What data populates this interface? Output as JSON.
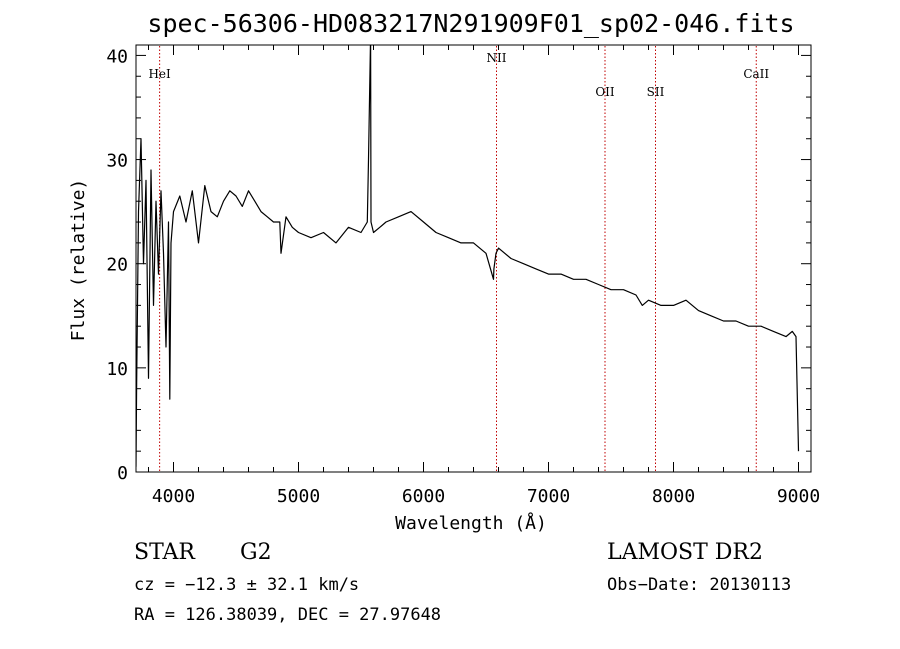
{
  "chart_data": {
    "type": "line",
    "title": "spec-56306-HD083217N291909F01_sp02-046.fits",
    "xlabel": "Wavelength (Å)",
    "ylabel": "Flux (relative)",
    "xlim": [
      3700,
      9100
    ],
    "ylim": [
      0,
      41
    ],
    "xticks": [
      4000,
      5000,
      6000,
      7000,
      8000,
      9000
    ],
    "yticks": [
      0,
      10,
      20,
      30,
      40
    ],
    "grid": false,
    "series": [
      {
        "x": [
          3700,
          3705,
          3720,
          3740,
          3760,
          3780,
          3800,
          3820,
          3840,
          3860,
          3880,
          3900,
          3920,
          3940,
          3960,
          3970,
          3980,
          4000,
          4050,
          4100,
          4150,
          4200,
          4250,
          4300,
          4350,
          4400,
          4450,
          4500,
          4550,
          4600,
          4650,
          4700,
          4750,
          4800,
          4850,
          4860,
          4900,
          4950,
          5000,
          5100,
          5200,
          5300,
          5400,
          5500,
          5550,
          5560,
          5577,
          5580,
          5600,
          5650,
          5700,
          5800,
          5900,
          6000,
          6100,
          6200,
          6300,
          6400,
          6500,
          6560,
          6563,
          6580,
          6600,
          6700,
          6800,
          6900,
          7000,
          7100,
          7200,
          7300,
          7400,
          7500,
          7600,
          7700,
          7750,
          7800,
          7900,
          8000,
          8100,
          8200,
          8300,
          8400,
          8500,
          8600,
          8700,
          8800,
          8900,
          8950,
          8980,
          9000
        ],
        "y": [
          0.5,
          8.0,
          25.0,
          32.0,
          20.0,
          28.0,
          9.0,
          29.0,
          16.0,
          26.0,
          19.0,
          27.0,
          21.0,
          12.0,
          24.0,
          7.0,
          22.0,
          25.0,
          26.5,
          24.0,
          27.0,
          22.0,
          27.5,
          25.0,
          24.5,
          26.0,
          27.0,
          26.5,
          25.5,
          27.0,
          26.0,
          25.0,
          24.5,
          24.0,
          24.0,
          21.0,
          24.5,
          23.5,
          23.0,
          22.5,
          23.0,
          22.0,
          23.5,
          23.0,
          24.0,
          30.0,
          42.0,
          24.0,
          23.0,
          23.5,
          24.0,
          24.5,
          25.0,
          24.0,
          23.0,
          22.5,
          22.0,
          22.0,
          21.0,
          18.5,
          19.5,
          21.0,
          21.5,
          20.5,
          20.0,
          19.5,
          19.0,
          19.0,
          18.5,
          18.5,
          18.0,
          17.5,
          17.5,
          17.0,
          16.0,
          16.5,
          16.0,
          16.0,
          16.5,
          15.5,
          15.0,
          14.5,
          14.5,
          14.0,
          14.0,
          13.5,
          13.0,
          13.5,
          13.0,
          2.0
        ]
      }
    ],
    "annotations": [
      {
        "label": "HeI",
        "x": 3889
      },
      {
        "label": "NII",
        "x": 6584
      },
      {
        "label": "OII",
        "x": 7452
      },
      {
        "label": "SII",
        "x": 7856
      },
      {
        "label": "CaII",
        "x": 8662
      }
    ]
  },
  "info": {
    "object_class": "STAR",
    "subclass": "G2",
    "survey": "LAMOST DR2",
    "cz": "cz = −12.3 ± 32.1 km/s",
    "obs_date": "Obs−Date: 20130113",
    "radec": "RA = 126.38039, DEC =  27.97648"
  }
}
